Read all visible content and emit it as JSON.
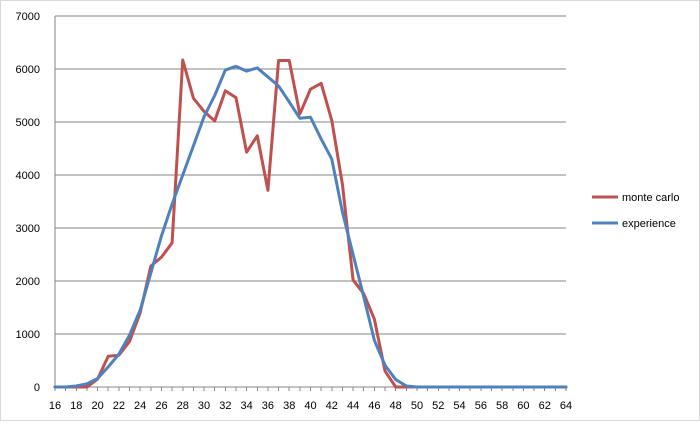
{
  "chart_data": {
    "type": "line",
    "title": "",
    "xlabel": "",
    "ylabel": "",
    "x": [
      16,
      17,
      18,
      19,
      20,
      21,
      22,
      23,
      24,
      25,
      26,
      27,
      28,
      29,
      30,
      31,
      32,
      33,
      34,
      35,
      36,
      37,
      38,
      39,
      40,
      41,
      42,
      43,
      44,
      45,
      46,
      47,
      48,
      49,
      50,
      51,
      52,
      53,
      54,
      55,
      56,
      57,
      58,
      59,
      60,
      61,
      62,
      63,
      64
    ],
    "xlim": [
      16,
      64
    ],
    "x_ticks": [
      "16",
      "18",
      "20",
      "22",
      "24",
      "26",
      "28",
      "30",
      "32",
      "34",
      "36",
      "38",
      "40",
      "42",
      "44",
      "46",
      "48",
      "50",
      "52",
      "54",
      "56",
      "58",
      "60",
      "62",
      "64"
    ],
    "ylim": [
      0,
      7000
    ],
    "y_ticks": [
      "0",
      "1000",
      "2000",
      "3000",
      "4000",
      "5000",
      "6000",
      "7000"
    ],
    "grid": true,
    "legend_position": "right",
    "series": [
      {
        "name": "monte carlo",
        "color": "#c0504d",
        "values": [
          0,
          0,
          0,
          0,
          150,
          580,
          600,
          860,
          1400,
          2280,
          2450,
          2720,
          6170,
          5450,
          5200,
          5020,
          5590,
          5460,
          4430,
          4740,
          3710,
          6160,
          6160,
          5150,
          5620,
          5730,
          5030,
          3820,
          2020,
          1760,
          1280,
          300,
          0,
          0,
          0,
          0,
          0,
          0,
          0,
          0,
          0,
          0,
          0,
          0,
          0,
          0,
          0,
          0,
          0
        ]
      },
      {
        "name": "experience",
        "color": "#4f81bd",
        "values": [
          0,
          0,
          20,
          60,
          160,
          380,
          620,
          980,
          1450,
          2150,
          2850,
          3450,
          4000,
          4550,
          5100,
          5500,
          5980,
          6050,
          5960,
          6020,
          5850,
          5680,
          5380,
          5070,
          5090,
          4680,
          4300,
          3300,
          2500,
          1700,
          880,
          410,
          140,
          20,
          0,
          0,
          0,
          0,
          0,
          0,
          0,
          0,
          0,
          0,
          0,
          0,
          0,
          0,
          0
        ]
      }
    ]
  }
}
